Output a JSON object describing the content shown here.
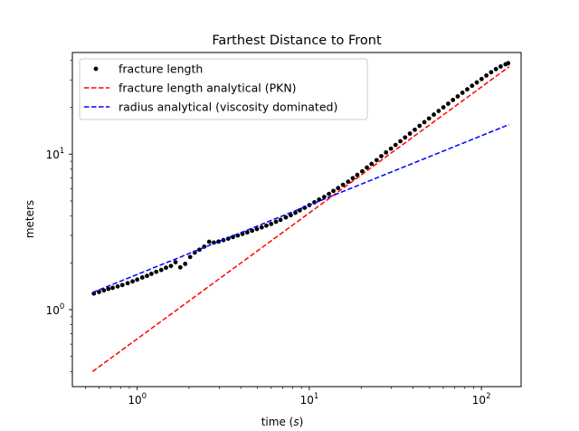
{
  "chart_data": {
    "type": "line",
    "title": "Farthest Distance to Front",
    "xlabel_prefix": "time (",
    "xlabel_var": "s",
    "xlabel_suffix": ")",
    "ylabel": "meters",
    "xscale": "log",
    "yscale": "log",
    "xlim": [
      0.42,
      170
    ],
    "ylim": [
      0.32,
      45
    ],
    "grid": false,
    "legend_position": "top-left",
    "x_ticks": [
      {
        "value": 1,
        "base": "10",
        "exp": "0"
      },
      {
        "value": 10,
        "base": "10",
        "exp": "1"
      },
      {
        "value": 100,
        "base": "10",
        "exp": "2"
      }
    ],
    "y_ticks": [
      {
        "value": 1,
        "base": "10",
        "exp": "0"
      },
      {
        "value": 10,
        "base": "10",
        "exp": "1"
      }
    ],
    "series": [
      {
        "name": "fracture length",
        "style": "markers",
        "color": "#000000",
        "x": [
          0.56,
          0.6,
          0.64,
          0.68,
          0.72,
          0.77,
          0.82,
          0.88,
          0.94,
          1.0,
          1.07,
          1.14,
          1.21,
          1.29,
          1.38,
          1.47,
          1.57,
          1.67,
          1.78,
          1.9,
          2.03,
          2.16,
          2.3,
          2.45,
          2.62,
          2.79,
          2.97,
          3.17,
          3.38,
          3.6,
          3.84,
          4.09,
          4.36,
          4.65,
          4.96,
          5.29,
          5.63,
          6.0,
          6.4,
          6.8,
          7.3,
          7.8,
          8.3,
          8.8,
          9.4,
          10.0,
          10.7,
          11.4,
          12.2,
          13.0,
          13.8,
          14.7,
          15.7,
          16.8,
          17.9,
          19.0,
          20.3,
          21.6,
          23.0,
          24.6,
          26.2,
          27.9,
          29.8,
          31.7,
          33.8,
          36.0,
          38.4,
          41.0,
          43.7,
          46.6,
          49.6,
          52.9,
          56.4,
          60.1,
          64.1,
          68.3,
          72.8,
          77.6,
          82.7,
          88.2,
          94.0,
          100.2,
          106.8,
          113.9,
          121.4,
          129.4,
          138.0,
          143.0
        ],
        "y": [
          1.27,
          1.3,
          1.33,
          1.36,
          1.38,
          1.41,
          1.44,
          1.48,
          1.52,
          1.56,
          1.61,
          1.65,
          1.7,
          1.75,
          1.8,
          1.86,
          1.91,
          2.02,
          1.87,
          1.97,
          2.18,
          2.33,
          2.43,
          2.54,
          2.73,
          2.7,
          2.74,
          2.8,
          2.86,
          2.93,
          3.0,
          3.07,
          3.14,
          3.22,
          3.3,
          3.38,
          3.47,
          3.56,
          3.67,
          3.78,
          3.92,
          4.05,
          4.2,
          4.35,
          4.52,
          4.7,
          4.9,
          5.1,
          5.3,
          5.55,
          5.8,
          6.05,
          6.35,
          6.65,
          7.0,
          7.35,
          7.75,
          8.2,
          8.65,
          9.15,
          9.7,
          10.25,
          10.85,
          11.45,
          12.1,
          12.8,
          13.55,
          14.35,
          15.2,
          16.05,
          16.95,
          17.95,
          18.95,
          20.0,
          21.1,
          22.3,
          23.5,
          24.8,
          26.1,
          27.5,
          28.9,
          30.4,
          32.0,
          33.6,
          35.2,
          36.6,
          37.8,
          38.4
        ]
      },
      {
        "name": "fracture length analytical (PKN)",
        "style": "dashed",
        "color": "#ff0000",
        "x": [
          0.55,
          145
        ],
        "y": [
          0.4,
          36.5
        ]
      },
      {
        "name": "radius analytical (viscosity dominated)",
        "style": "dashed",
        "color": "#0000ff",
        "x": [
          0.55,
          145
        ],
        "y": [
          1.29,
          15.5
        ]
      }
    ]
  }
}
